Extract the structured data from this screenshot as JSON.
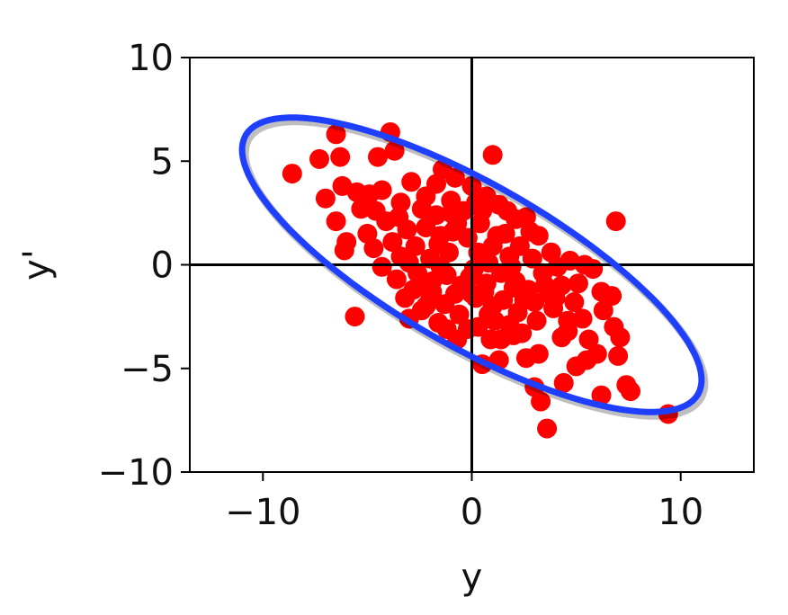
{
  "chart_data": {
    "type": "scatter",
    "title": "",
    "xlabel": "y",
    "ylabel": "y'",
    "xlim": [
      -13.5,
      13.5
    ],
    "ylim": [
      -10,
      10
    ],
    "xticks": [
      -10,
      0,
      10
    ],
    "xtick_labels": [
      "−10",
      "0",
      "10"
    ],
    "yticks": [
      -10,
      -5,
      0,
      5,
      10
    ],
    "ytick_labels": [
      "−10",
      "−5",
      "0",
      "5",
      "10"
    ],
    "grid": false,
    "reference_lines": [
      {
        "axis": "x",
        "value": 0
      },
      {
        "axis": "y",
        "value": 0
      }
    ],
    "point_color": "#ff0000",
    "ellipse": {
      "center": [
        0,
        0
      ],
      "angle_deg": -30,
      "semi_major": 12.5,
      "semi_minor": 3.9,
      "color": "#1f3fff"
    },
    "points": [
      [
        -8.6,
        4.4
      ],
      [
        -7.3,
        5.1
      ],
      [
        -6.5,
        6.3
      ],
      [
        -6.3,
        5.2
      ],
      [
        -7.0,
        3.2
      ],
      [
        -6.2,
        3.8
      ],
      [
        -5.5,
        3.5
      ],
      [
        -6.5,
        2.1
      ],
      [
        -6.0,
        1.1
      ],
      [
        -6.1,
        0.7
      ],
      [
        -5.6,
        -2.5
      ],
      [
        -4.5,
        5.2
      ],
      [
        -3.7,
        5.5
      ],
      [
        -3.9,
        6.4
      ],
      [
        -4.9,
        3.4
      ],
      [
        -4.6,
        2.6
      ],
      [
        -5.0,
        1.5
      ],
      [
        -4.7,
        0.8
      ],
      [
        -4.1,
        2.1
      ],
      [
        -3.4,
        3.0
      ],
      [
        -2.9,
        4.0
      ],
      [
        -2.2,
        3.3
      ],
      [
        -1.4,
        4.6
      ],
      [
        -1.0,
        3.1
      ],
      [
        0.0,
        3.8
      ],
      [
        0.7,
        3.3
      ],
      [
        1.0,
        5.3
      ],
      [
        0.5,
        2.6
      ],
      [
        1.3,
        2.9
      ],
      [
        2.1,
        2.2
      ],
      [
        2.6,
        2.3
      ],
      [
        3.2,
        1.4
      ],
      [
        3.8,
        0.6
      ],
      [
        4.7,
        0.2
      ],
      [
        5.4,
        0.0
      ],
      [
        5.8,
        -0.2
      ],
      [
        6.9,
        2.1
      ],
      [
        6.7,
        -1.5
      ],
      [
        6.2,
        -1.3
      ],
      [
        6.8,
        -3.0
      ],
      [
        7.1,
        -3.5
      ],
      [
        7.0,
        -4.4
      ],
      [
        7.4,
        -5.8
      ],
      [
        7.6,
        -6.1
      ],
      [
        6.2,
        -6.3
      ],
      [
        5.5,
        -4.6
      ],
      [
        5.0,
        -4.9
      ],
      [
        4.4,
        -5.7
      ],
      [
        3.6,
        -7.9
      ],
      [
        3.3,
        -6.6
      ],
      [
        3.0,
        -5.9
      ],
      [
        4.3,
        -3.5
      ],
      [
        4.6,
        -2.7
      ],
      [
        3.9,
        -2.1
      ],
      [
        3.2,
        -4.3
      ],
      [
        2.6,
        -4.5
      ],
      [
        2.0,
        -3.4
      ],
      [
        1.4,
        -3.6
      ],
      [
        1.3,
        -4.6
      ],
      [
        0.5,
        -4.8
      ],
      [
        -0.2,
        -3.1
      ],
      [
        -0.7,
        -3.6
      ],
      [
        -1.6,
        -2.8
      ],
      [
        -2.4,
        -2.2
      ],
      [
        -3.0,
        -2.6
      ],
      [
        -3.2,
        -1.6
      ],
      [
        -3.6,
        -0.7
      ],
      [
        -3.4,
        0.4
      ],
      [
        -2.7,
        0.9
      ],
      [
        -2.2,
        1.8
      ],
      [
        -1.5,
        1.4
      ],
      [
        -0.7,
        2.0
      ],
      [
        -0.2,
        1.3
      ],
      [
        0.3,
        0.6
      ],
      [
        1.0,
        0.9
      ],
      [
        1.6,
        1.5
      ],
      [
        2.3,
        0.9
      ],
      [
        2.9,
        0.3
      ],
      [
        3.4,
        -0.4
      ],
      [
        2.7,
        -1.2
      ],
      [
        2.1,
        -0.8
      ],
      [
        1.5,
        -1.7
      ],
      [
        0.8,
        -2.4
      ],
      [
        0.2,
        -1.6
      ],
      [
        -0.5,
        -1.0
      ],
      [
        -1.2,
        -0.5
      ],
      [
        -1.9,
        -1.3
      ],
      [
        -2.6,
        -0.4
      ],
      [
        -2.0,
        0.3
      ],
      [
        -1.1,
        0.6
      ],
      [
        0.1,
        -0.2
      ],
      [
        0.8,
        0.1
      ],
      [
        1.4,
        -0.4
      ],
      [
        2.2,
        -2.3
      ],
      [
        3.1,
        -2.7
      ],
      [
        3.7,
        -1.4
      ],
      [
        4.3,
        -1.0
      ],
      [
        4.9,
        -1.8
      ],
      [
        5.3,
        -2.6
      ],
      [
        5.6,
        -3.6
      ],
      [
        6.0,
        -4.3
      ],
      [
        6.3,
        -2.2
      ],
      [
        5.1,
        -0.9
      ],
      [
        4.1,
        -0.1
      ],
      [
        -0.4,
        2.6
      ],
      [
        -1.7,
        2.4
      ],
      [
        -2.4,
        2.7
      ],
      [
        -3.1,
        1.7
      ],
      [
        -3.8,
        1.1
      ],
      [
        -4.3,
        -0.1
      ],
      [
        -2.8,
        -1.2
      ],
      [
        -1.3,
        -1.9
      ],
      [
        -0.6,
        -2.4
      ],
      [
        0.3,
        -3.0
      ],
      [
        1.0,
        -2.0
      ],
      [
        1.8,
        -2.9
      ],
      [
        2.4,
        -3.3
      ],
      [
        9.4,
        -7.2
      ],
      [
        -2.0,
        -1.7
      ],
      [
        -1.2,
        -3.1
      ],
      [
        0.9,
        -3.6
      ],
      [
        1.9,
        -0.1
      ],
      [
        -0.9,
        1.6
      ],
      [
        -2.5,
        -1.0
      ],
      [
        -3.5,
        2.3
      ],
      [
        -4.3,
        3.6
      ],
      [
        -5.3,
        2.7
      ],
      [
        -1.7,
        3.9
      ],
      [
        -0.8,
        4.2
      ],
      [
        0.2,
        3.0
      ],
      [
        1.7,
        2.6
      ],
      [
        2.8,
        1.6
      ],
      [
        3.5,
        -1.0
      ],
      [
        4.0,
        -1.6
      ],
      [
        4.6,
        -3.2
      ],
      [
        -1.9,
        -0.8
      ],
      [
        -0.1,
        -0.6
      ],
      [
        0.6,
        -1.3
      ],
      [
        1.2,
        1.4
      ],
      [
        2.5,
        -1.7
      ],
      [
        -3.0,
        0.1
      ],
      [
        -1.5,
        -0.1
      ],
      [
        0.4,
        2.0
      ],
      [
        1.8,
        0.4
      ],
      [
        0.0,
        -1.4
      ],
      [
        -0.8,
        -1.4
      ],
      [
        2.0,
        -1.1
      ],
      [
        -2.2,
        -2.0
      ],
      [
        -1.0,
        2.5
      ],
      [
        3.0,
        -1.8
      ],
      [
        0.7,
        -0.9
      ],
      [
        -1.6,
        1.0
      ],
      [
        1.1,
        -2.7
      ]
    ]
  }
}
